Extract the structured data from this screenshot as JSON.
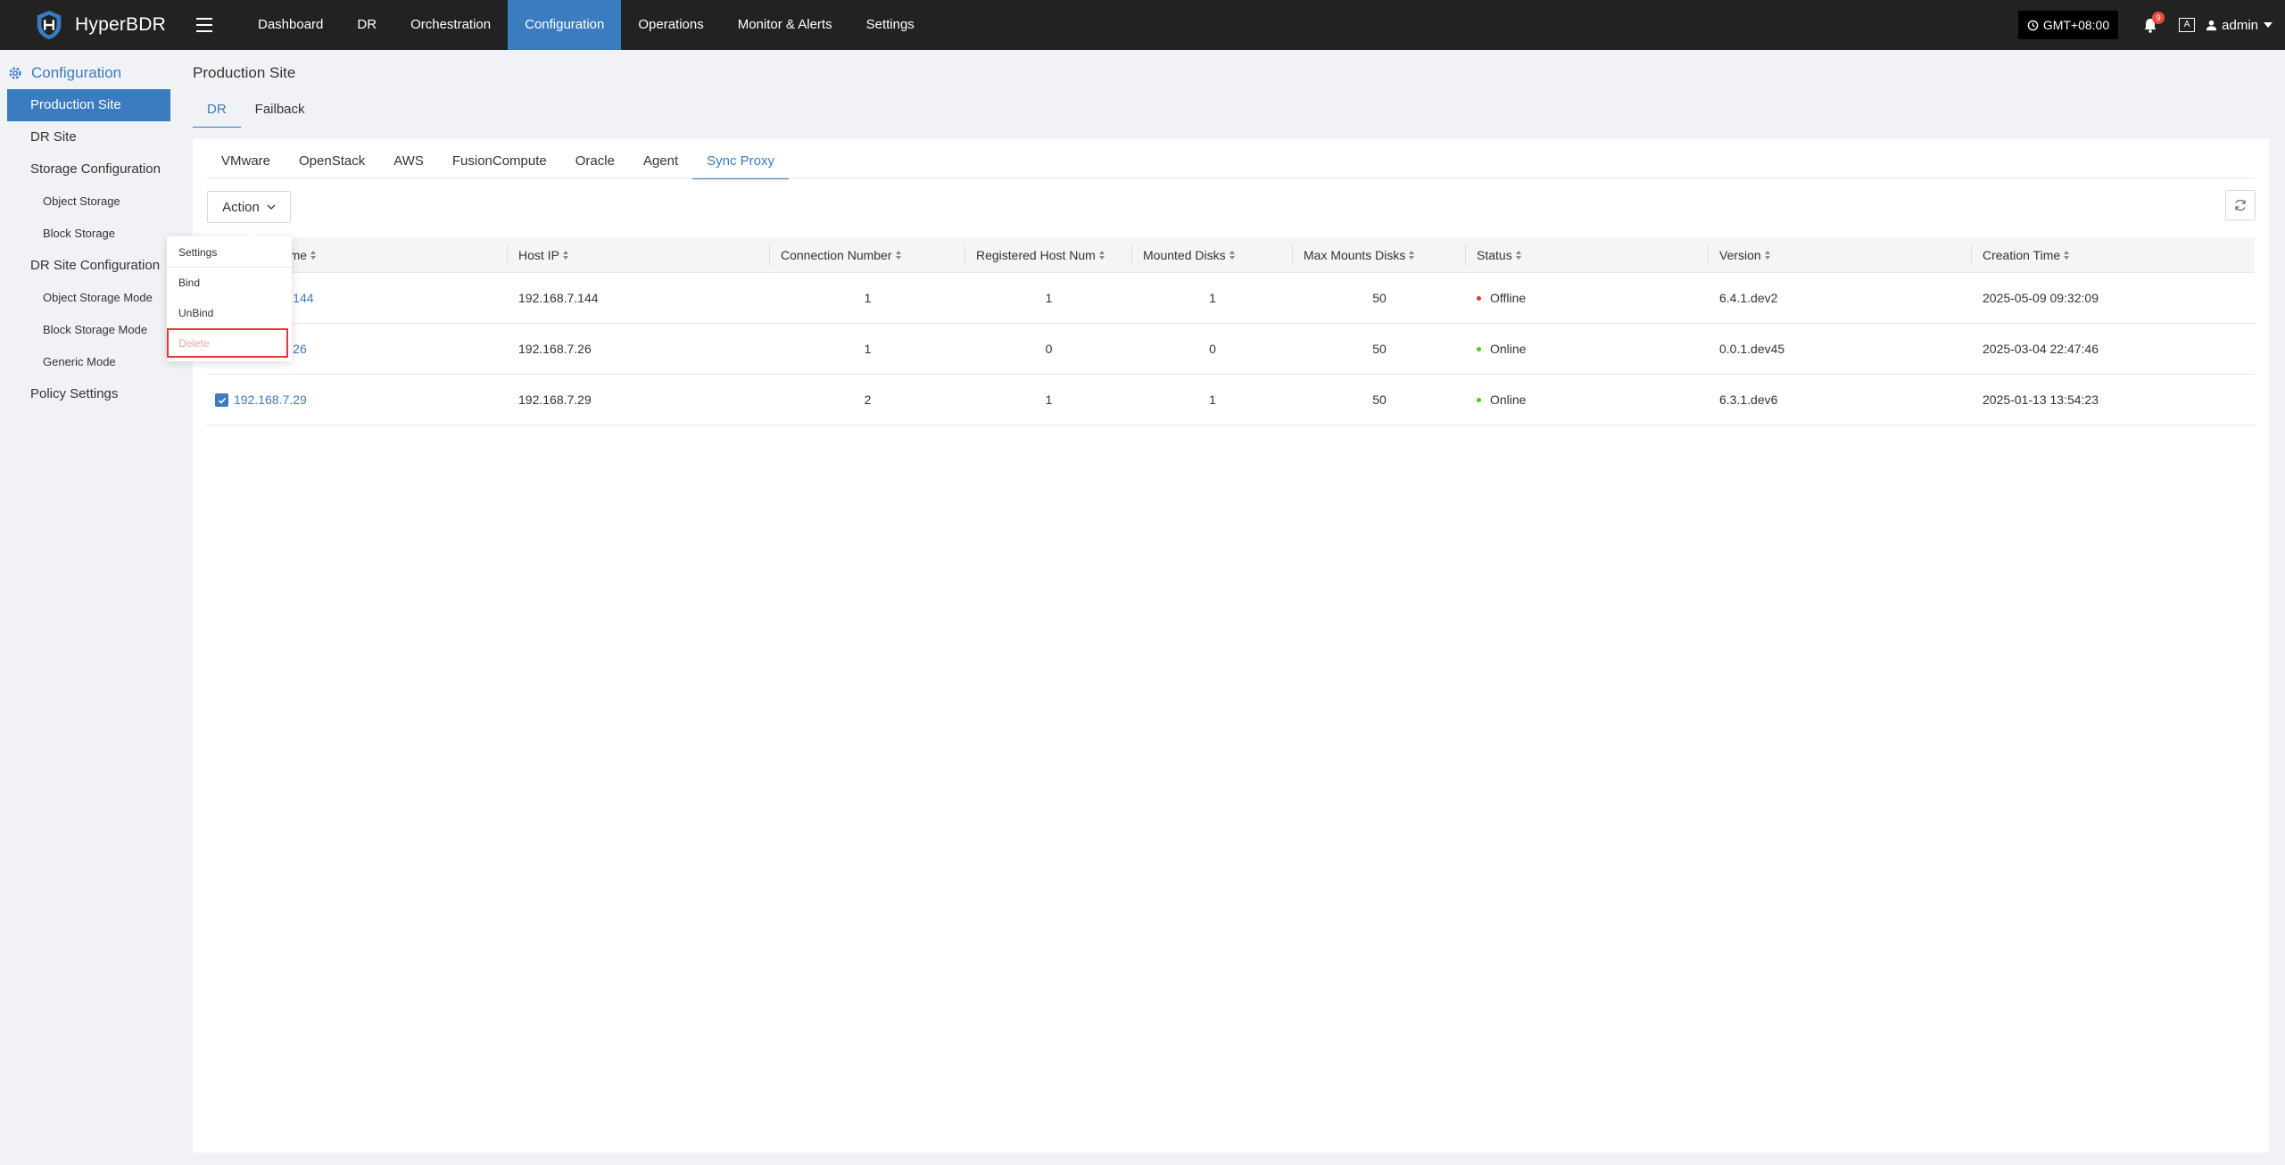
{
  "app": {
    "brand": "HyperBDR",
    "nav": [
      "Dashboard",
      "DR",
      "Orchestration",
      "Configuration",
      "Operations",
      "Monitor & Alerts",
      "Settings"
    ],
    "timezone": "GMT+08:00",
    "alerts_count": "9",
    "lang_label": "A",
    "user": "admin"
  },
  "sidebar": {
    "title": "Configuration",
    "items": [
      {
        "label": "Production Site"
      },
      {
        "label": "DR Site"
      },
      {
        "label": "Storage Configuration"
      },
      {
        "label": "Object Storage"
      },
      {
        "label": "Block Storage"
      },
      {
        "label": "DR Site Configuration"
      },
      {
        "label": "Object Storage Mode"
      },
      {
        "label": "Block Storage Mode"
      },
      {
        "label": "Generic Mode"
      },
      {
        "label": "Policy Settings"
      }
    ]
  },
  "page": {
    "title": "Production Site",
    "tabs": [
      "DR",
      "Failback"
    ],
    "sub_tabs": [
      "VMware",
      "OpenStack",
      "AWS",
      "FusionCompute",
      "Oracle",
      "Agent",
      "Sync Proxy"
    ],
    "action_label": "Action"
  },
  "dropdown": {
    "items": [
      "Settings",
      "Bind",
      "UnBind",
      "Delete"
    ]
  },
  "table": {
    "columns": [
      "Host Name",
      "Host IP",
      "Connection Number",
      "Registered Host Num",
      "Mounted Disks",
      "Max Mounts Disks",
      "Status",
      "Version",
      "Creation Time"
    ],
    "rows": [
      {
        "name": "192.168.7.144",
        "ip": "192.168.7.144",
        "conn": "1",
        "reg": "1",
        "mounted": "1",
        "max": "50",
        "status": "Offline",
        "version": "6.4.1.dev2",
        "created": "2025-05-09 09:32:09",
        "checked": false
      },
      {
        "name": "192.168.7.26",
        "ip": "192.168.7.26",
        "conn": "1",
        "reg": "0",
        "mounted": "0",
        "max": "50",
        "status": "Online",
        "version": "0.0.1.dev45",
        "created": "2025-03-04 22:47:46",
        "checked": false
      },
      {
        "name": "192.168.7.29",
        "ip": "192.168.7.29",
        "conn": "2",
        "reg": "1",
        "mounted": "1",
        "max": "50",
        "status": "Online",
        "version": "6.3.1.dev6",
        "created": "2025-01-13 13:54:23",
        "checked": true
      }
    ]
  },
  "colors": {
    "accent": "#3b7bbf",
    "topbar": "#222222",
    "offline": "#e53935",
    "online": "#52c41a"
  }
}
